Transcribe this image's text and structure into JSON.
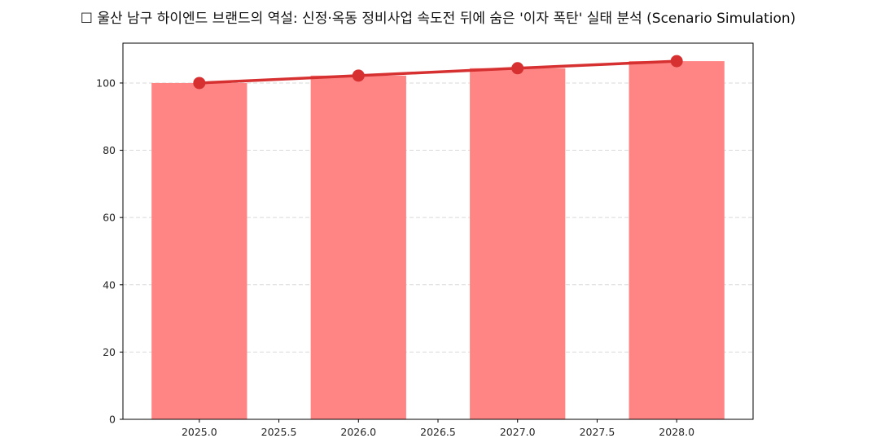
{
  "title": "☐ 울산 남구 하이엔드 브랜드의 역설: 신정·옥동 정비사업 속도전 뒤에 숨은 '이자 폭탄' 실태 분석 (Scenario Simulation)",
  "colors": {
    "bar": "#ff8585",
    "line": "#d63031",
    "grid": "#d9d9d9",
    "axis": "#000000"
  },
  "chart_data": {
    "type": "bar",
    "title": "☐ 울산 남구 하이엔드 브랜드의 역설: 신정·옥동 정비사업 속도전 뒤에 숨은 '이자 폭탄' 실태 분석 (Scenario Simulation)",
    "xlabel": "",
    "ylabel": "",
    "categories": [
      2025,
      2026,
      2027,
      2028
    ],
    "series": [
      {
        "name": "bar",
        "type": "bar",
        "values": [
          100.0,
          102.2,
          104.4,
          106.5
        ]
      },
      {
        "name": "line",
        "type": "line",
        "values": [
          100.0,
          102.2,
          104.4,
          106.5
        ]
      }
    ],
    "xlim": [
      2024.5,
      2028.5
    ],
    "ylim": [
      0,
      112
    ],
    "xticks": [
      "2025.0",
      "2025.5",
      "2026.0",
      "2026.5",
      "2027.0",
      "2027.5",
      "2028.0"
    ],
    "yticks": [
      "0",
      "20",
      "40",
      "60",
      "80",
      "100"
    ],
    "grid": "y-dashed",
    "legend": null
  }
}
